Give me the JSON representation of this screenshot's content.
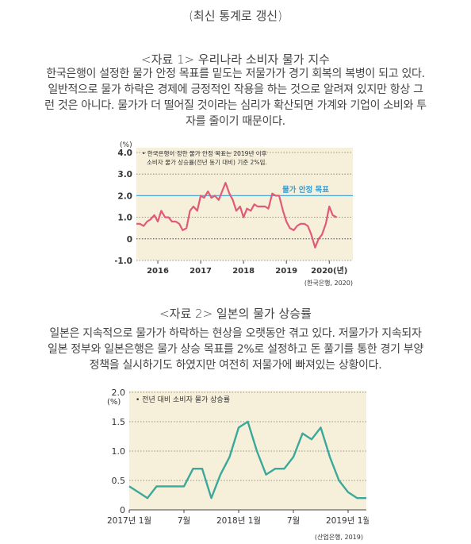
{
  "page_title": "(최신 통계로 갱신)",
  "section1": {
    "heading": "<자료 1> 우리나라 소비자 물가 지수",
    "lines": [
      "한국은행이 설정한 물가 안정 목표를 밑도는 저물가가 경기 회복의 복병이 되고 있다.",
      "일반적으로 물가 하락은 경제에 긍정적인 작용을 하는 것으로 알려져 있지만 항상 그",
      "런 것은 아니다. 물가가 더 떨어질 것이라는 심리가 확산되면 가계와 기업이 소비와 투",
      "자를 줄이기 때문이다."
    ]
  },
  "chart1_labels": {
    "unit": "(%)",
    "note_line1": "• 한국은행이 정한 물가 안정 목표는 2019년 이후",
    "note_line2": "소비자 물가 상승률(전년 동기 대비) 기준 2%임.",
    "target_label": "물가 안정 목표",
    "source": "(한국은행, 2020)"
  },
  "section2": {
    "heading": "<자료 2> 일본의 물가 상승률",
    "lines": [
      "일본은 지속적으로 물가가 하락하는 현상을 오랫동안 겪고 있다. 저물가가 지속되자",
      "일본 정부와 일본은행은 물가 상승 목표를 2%로 설정하고 돈 풀기를 통한 경기 부양",
      "정책을 실시하기도 하였지만 여전히 저물가에 빠져있는 상황이다."
    ]
  },
  "chart2_labels": {
    "unit": "(%)",
    "legend": "• 전년 대비 소비자 물가 상승률",
    "source": "(산업은행, 2019)"
  },
  "chart_data": [
    {
      "type": "line",
      "ylabel": "(%)",
      "ylim": [
        -1.0,
        4.0
      ],
      "yticks": [
        "4.0",
        "3.0",
        "2.0",
        "1.0",
        "0",
        "-1.0"
      ],
      "ytick_values": [
        4.0,
        3.0,
        2.0,
        1.0,
        0,
        -1.0
      ],
      "xticks": [
        "2016",
        "2017",
        "2018",
        "2019",
        "2020(년)"
      ],
      "xtick_values": [
        2016,
        2017,
        2018,
        2019,
        2020
      ],
      "xlim": [
        2015.5,
        2020.55
      ],
      "target_line": 2.0,
      "target_label": "물가 안정 목표",
      "grid": "horizontal dotted",
      "colors": {
        "line": "#e05a78",
        "target": "#48a8d8",
        "background": "#f6efd9"
      },
      "series": [
        {
          "x": [
            2015.5,
            2015.58,
            2015.67,
            2015.75,
            2015.83,
            2015.92,
            2016.0,
            2016.08,
            2016.17,
            2016.25,
            2016.33,
            2016.42,
            2016.5,
            2016.58,
            2016.67,
            2016.75,
            2016.83,
            2016.92,
            2017.0,
            2017.08,
            2017.17,
            2017.25,
            2017.33,
            2017.42,
            2017.5,
            2017.58,
            2017.67,
            2017.75,
            2017.83,
            2017.92,
            2018.0,
            2018.08,
            2018.17,
            2018.25,
            2018.33,
            2018.42,
            2018.5,
            2018.58,
            2018.67,
            2018.75,
            2018.83,
            2018.92,
            2019.0,
            2019.08,
            2019.17,
            2019.25,
            2019.33,
            2019.42,
            2019.5,
            2019.58,
            2019.67,
            2019.75,
            2019.83,
            2019.92,
            2020.0,
            2020.08,
            2020.17
          ],
          "values": [
            0.7,
            0.7,
            0.6,
            0.8,
            0.9,
            1.1,
            0.8,
            1.3,
            1.0,
            1.0,
            0.8,
            0.8,
            0.7,
            0.4,
            0.5,
            1.3,
            1.5,
            1.3,
            2.0,
            1.9,
            2.2,
            1.9,
            2.0,
            1.8,
            2.2,
            2.6,
            2.1,
            1.8,
            1.3,
            1.5,
            1.0,
            1.4,
            1.3,
            1.6,
            1.5,
            1.5,
            1.5,
            1.4,
            2.1,
            2.0,
            2.0,
            1.3,
            0.8,
            0.5,
            0.4,
            0.6,
            0.7,
            0.7,
            0.6,
            0.2,
            -0.4,
            0.0,
            0.2,
            0.7,
            1.5,
            1.1,
            1.0
          ]
        }
      ]
    },
    {
      "type": "line",
      "ylabel": "(%)",
      "ylim": [
        0,
        2.0
      ],
      "yticks": [
        "2.0",
        "1.5",
        "1.0",
        "0.5",
        "0"
      ],
      "ytick_values": [
        2.0,
        1.5,
        1.0,
        0.5,
        0
      ],
      "xticks": [
        "2017년 1월",
        "7월",
        "2018년 1월",
        "7월",
        "2019년 1월"
      ],
      "xtick_values": [
        0,
        6,
        12,
        18,
        24
      ],
      "xlim": [
        0,
        26
      ],
      "grid": "horizontal dotted",
      "legend": "전년 대비 소비자 물가 상승률",
      "colors": {
        "line": "#3aa89a",
        "background": "#f6efd9"
      },
      "series": [
        {
          "x": [
            0,
            1,
            2,
            3,
            4,
            5,
            6,
            7,
            8,
            9,
            10,
            11,
            12,
            13,
            14,
            15,
            16,
            17,
            18,
            19,
            20,
            21,
            22,
            23,
            24,
            25,
            26
          ],
          "values": [
            0.4,
            0.3,
            0.2,
            0.4,
            0.4,
            0.4,
            0.4,
            0.7,
            0.7,
            0.2,
            0.6,
            0.9,
            1.4,
            1.5,
            1.0,
            0.6,
            0.7,
            0.7,
            0.9,
            1.3,
            1.2,
            1.4,
            0.9,
            0.5,
            0.3,
            0.2,
            0.2
          ]
        }
      ]
    }
  ]
}
